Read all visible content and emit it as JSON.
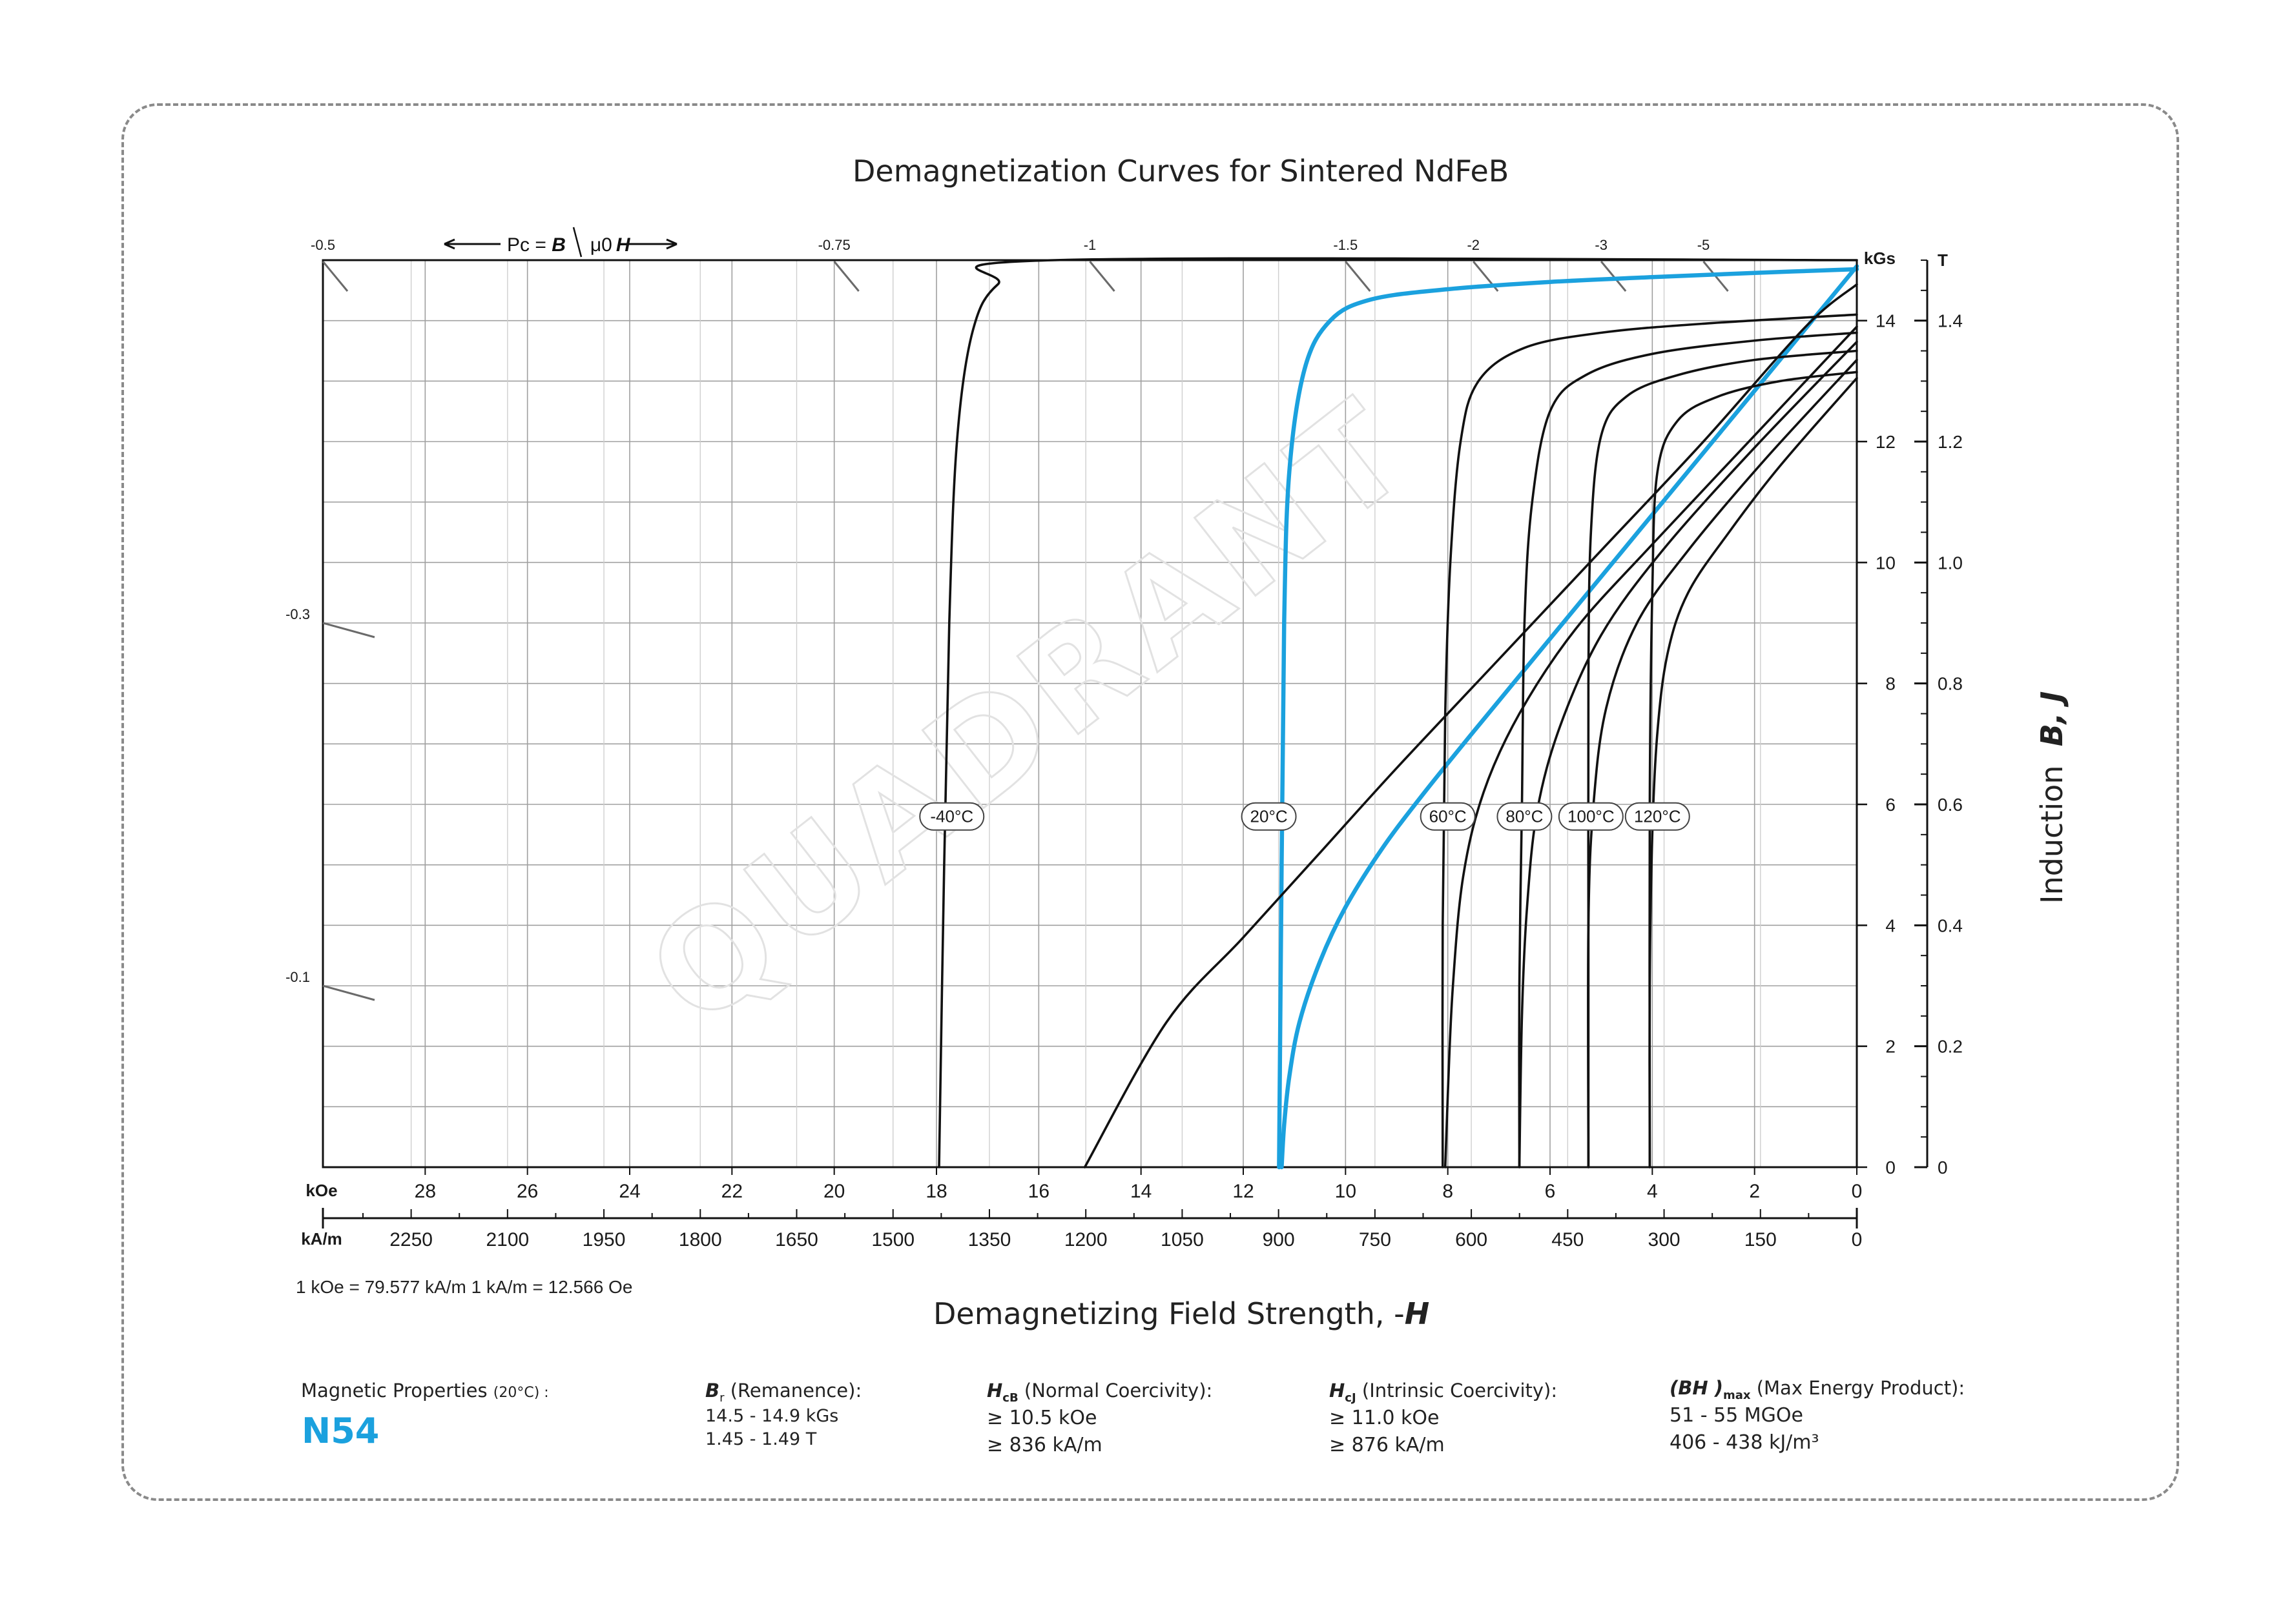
{
  "colors": {
    "accent": "#1ba1de",
    "curve": "#111111",
    "grid": "#9a9a9a"
  },
  "page": {
    "note": "1 kOe = 79.577 kA/m   1 kA/m = 12.566 Oe",
    "watermark": "QUADRANT"
  },
  "properties": {
    "heading": "Magnetic Properties",
    "heading_temp": "(20°C) :",
    "grade": "N54",
    "br_symbol": "B",
    "br_sub": "r",
    "br_label": "(Remanence):",
    "br_values": [
      "14.5 - 14.9 kGs",
      "1.45 - 1.49 T"
    ],
    "hcb_symbol": "H",
    "hcb_sub": "cB",
    "hcb_label": "(Normal Coercivity):",
    "hcb_values": [
      "≥ 10.5 kOe",
      "≥ 836 kA/m"
    ],
    "hcj_symbol": "H",
    "hcj_sub": "cJ",
    "hcj_label": "(Intrinsic Coercivity):",
    "hcj_values": [
      "≥ 11.0 kOe",
      "≥ 876 kA/m"
    ],
    "bh_symbol": "(BH )",
    "bh_sub": "max",
    "bh_label": "(Max Energy Product):",
    "bh_values": [
      "51 - 55 MGOe",
      "406 - 438 kJ/m³"
    ]
  },
  "chart_data": {
    "type": "line",
    "title": "Demagnetization Curves for Sintered NdFeB",
    "xlabel": "Demagnetizing Field Strength, -",
    "xlabel_symbol": "H",
    "ylabel": "Induction",
    "ylabel_symbol": "B,  J",
    "x_unit_primary": "kOe",
    "x_unit_secondary": "kA/m",
    "y_unit_primary": "kGs",
    "y_unit_secondary": "T",
    "xlim": [
      30,
      0
    ],
    "ylim": [
      0,
      15
    ],
    "x_ticks_koe": [
      "28",
      "26",
      "24",
      "22",
      "20",
      "18",
      "16",
      "14",
      "12",
      "10",
      "8",
      "6",
      "4",
      "2",
      "0"
    ],
    "x_ticks_kam": [
      "2250",
      "2100",
      "1950",
      "1800",
      "1650",
      "1500",
      "1350",
      "1200",
      "1050",
      "900",
      "750",
      "600",
      "450",
      "300",
      "150",
      "0"
    ],
    "y_ticks_kgs": [
      "0",
      "2",
      "4",
      "6",
      "8",
      "10",
      "12",
      "14"
    ],
    "y_ticks_t": [
      "0",
      "0.2",
      "0.4",
      "0.6",
      "0.8",
      "1.0",
      "1.2",
      "1.4"
    ],
    "grid": true,
    "permeance": {
      "label": "Pc = ",
      "label_b": "B",
      "label_mu": "μ0",
      "label_h": "H",
      "top_ticks": [
        {
          "label": "-0.5",
          "h": 30.0
        },
        {
          "label": "-0.75",
          "h": 20.0
        },
        {
          "label": "-1",
          "h": 15.0
        },
        {
          "label": "-1.5",
          "h": 10.0
        },
        {
          "label": "-2",
          "h": 7.5
        },
        {
          "label": "-3",
          "h": 5.0
        },
        {
          "label": "-5",
          "h": 3.0
        }
      ],
      "left_ticks": [
        {
          "label": "-0.3",
          "b": 9.0
        },
        {
          "label": "-0.1",
          "b": 3.0
        }
      ]
    },
    "series": [
      {
        "name": "-40°C",
        "kind": "J",
        "color": "#111111",
        "points": [
          [
            0,
            15.0
          ],
          [
            15.7,
            15.0
          ],
          [
            16.8,
            14.6
          ],
          [
            17.3,
            13.8
          ],
          [
            17.6,
            12.0
          ],
          [
            17.75,
            9.0
          ],
          [
            17.85,
            5.0
          ],
          [
            17.95,
            0
          ]
        ]
      },
      {
        "name": "20°C",
        "kind": "J",
        "color": "#1ba1de",
        "points": [
          [
            0,
            14.85
          ],
          [
            2,
            14.79
          ],
          [
            4,
            14.72
          ],
          [
            6,
            14.64
          ],
          [
            8,
            14.52
          ],
          [
            9.5,
            14.35
          ],
          [
            10.3,
            14.0
          ],
          [
            10.8,
            13.2
          ],
          [
            11.1,
            11.5
          ],
          [
            11.2,
            9.0
          ],
          [
            11.25,
            5.0
          ],
          [
            11.3,
            0
          ]
        ]
      },
      {
        "name": "20°C",
        "kind": "B",
        "color": "#1ba1de",
        "points": [
          [
            0,
            14.9
          ],
          [
            2,
            12.84
          ],
          [
            4,
            10.79
          ],
          [
            6,
            8.74
          ],
          [
            7.5,
            7.2
          ],
          [
            8.5,
            6.15
          ],
          [
            9.3,
            5.25
          ],
          [
            10.0,
            4.3
          ],
          [
            10.5,
            3.4
          ],
          [
            10.9,
            2.4
          ],
          [
            11.1,
            1.5
          ],
          [
            11.2,
            0.7
          ],
          [
            11.25,
            0
          ]
        ]
      },
      {
        "name": "",
        "kind": "B",
        "color": "#111111",
        "points": [
          [
            0,
            14.6
          ],
          [
            1,
            13.9
          ],
          [
            3,
            12.0
          ],
          [
            5,
            10.2
          ],
          [
            7,
            8.4
          ],
          [
            9,
            6.6
          ],
          [
            10.5,
            5.2
          ],
          [
            12,
            3.8
          ],
          [
            13.5,
            2.4
          ],
          [
            15.1,
            0
          ]
        ]
      },
      {
        "name": "60°C",
        "kind": "J",
        "color": "#111111",
        "points": [
          [
            0,
            14.1
          ],
          [
            3,
            13.95
          ],
          [
            5,
            13.8
          ],
          [
            6.5,
            13.55
          ],
          [
            7.4,
            13.0
          ],
          [
            7.75,
            12.0
          ],
          [
            7.95,
            10.0
          ],
          [
            8.05,
            7.5
          ],
          [
            8.1,
            4.0
          ],
          [
            8.1,
            0
          ]
        ]
      },
      {
        "name": "60°C",
        "kind": "B",
        "color": "#111111",
        "points": [
          [
            0,
            13.9
          ],
          [
            2,
            12.1
          ],
          [
            4,
            10.3
          ],
          [
            5.5,
            8.9
          ],
          [
            6.6,
            7.5
          ],
          [
            7.3,
            6.2
          ],
          [
            7.7,
            4.8
          ],
          [
            7.9,
            3.0
          ],
          [
            8.0,
            1.2
          ],
          [
            8.05,
            0
          ]
        ]
      },
      {
        "name": "80°C",
        "kind": "J",
        "color": "#111111",
        "points": [
          [
            0,
            13.8
          ],
          [
            2,
            13.67
          ],
          [
            4,
            13.45
          ],
          [
            5.3,
            13.1
          ],
          [
            6.0,
            12.5
          ],
          [
            6.35,
            11.0
          ],
          [
            6.5,
            9.0
          ],
          [
            6.55,
            6.0
          ],
          [
            6.6,
            3.0
          ],
          [
            6.6,
            0
          ]
        ]
      },
      {
        "name": "80°C",
        "kind": "B",
        "color": "#111111",
        "points": [
          [
            0,
            13.65
          ],
          [
            2,
            11.9
          ],
          [
            3.8,
            10.2
          ],
          [
            5.0,
            8.8
          ],
          [
            5.8,
            7.3
          ],
          [
            6.25,
            5.9
          ],
          [
            6.45,
            4.3
          ],
          [
            6.55,
            2.5
          ],
          [
            6.6,
            0
          ]
        ]
      },
      {
        "name": "100°C",
        "kind": "J",
        "color": "#111111",
        "points": [
          [
            0,
            13.5
          ],
          [
            2,
            13.35
          ],
          [
            3.5,
            13.1
          ],
          [
            4.5,
            12.75
          ],
          [
            5.0,
            12.1
          ],
          [
            5.2,
            10.5
          ],
          [
            5.25,
            8.0
          ],
          [
            5.25,
            4.0
          ],
          [
            5.25,
            0
          ]
        ]
      },
      {
        "name": "100°C",
        "kind": "B",
        "color": "#111111",
        "points": [
          [
            0,
            13.35
          ],
          [
            1.8,
            11.7
          ],
          [
            3.3,
            10.2
          ],
          [
            4.3,
            9.0
          ],
          [
            4.9,
            7.6
          ],
          [
            5.15,
            6.0
          ],
          [
            5.25,
            4.0
          ],
          [
            5.25,
            0
          ]
        ]
      },
      {
        "name": "120°C",
        "kind": "J",
        "color": "#111111",
        "points": [
          [
            0,
            13.15
          ],
          [
            1.5,
            13.0
          ],
          [
            2.7,
            12.75
          ],
          [
            3.5,
            12.35
          ],
          [
            3.9,
            11.5
          ],
          [
            4.0,
            9.5
          ],
          [
            4.05,
            6.0
          ],
          [
            4.05,
            0
          ]
        ]
      },
      {
        "name": "120°C",
        "kind": "B",
        "color": "#111111",
        "points": [
          [
            0,
            13.05
          ],
          [
            1.5,
            11.6
          ],
          [
            2.5,
            10.5
          ],
          [
            3.3,
            9.5
          ],
          [
            3.7,
            8.5
          ],
          [
            3.9,
            7.2
          ],
          [
            4.0,
            5.5
          ],
          [
            4.05,
            3.0
          ],
          [
            4.05,
            0
          ]
        ]
      }
    ],
    "curve_labels": [
      {
        "text": "-40°C",
        "h": 17.7
      },
      {
        "text": "20°C",
        "h": 11.5
      },
      {
        "text": "60°C",
        "h": 8.0
      },
      {
        "text": "80°C",
        "h": 6.5
      },
      {
        "text": "100°C",
        "h": 5.2
      },
      {
        "text": "120°C",
        "h": 3.9
      }
    ],
    "curve_labels_b": 5.8
  }
}
